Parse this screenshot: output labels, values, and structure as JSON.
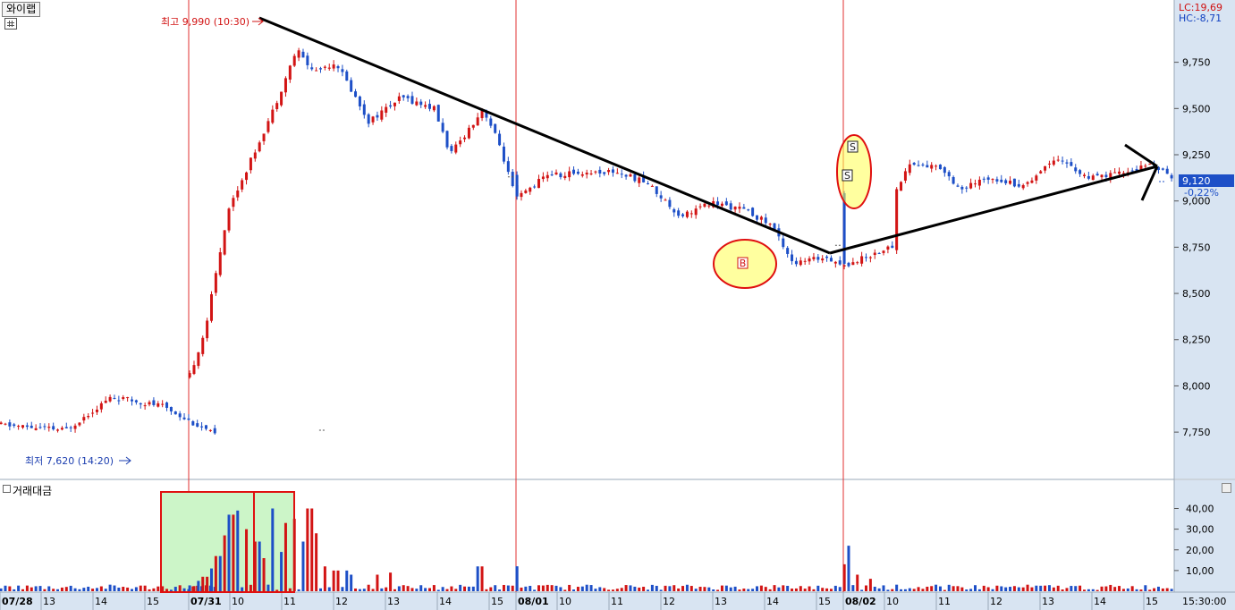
{
  "window": {
    "title": "와이랩"
  },
  "header": {
    "lc": "LC:19,69",
    "hc": "HC:-8,71"
  },
  "price": {
    "current_label": "9,120",
    "change_label": "-0,22%",
    "colors": {
      "up": "#d21414",
      "down": "#1d4fc7",
      "panel_bg": "#d8e4f2",
      "price_badge": "#1d4fc7"
    }
  },
  "annotations": {
    "high_label": "최고 9,990 (10:30)",
    "low_label": "최저 7,620 (14:20)",
    "buy_marker": "B",
    "sell_marker": "S"
  },
  "volume_panel": {
    "title": "거래대금"
  },
  "time_axis": {
    "labels": [
      "07/28",
      "13",
      "14",
      "15",
      "07/31",
      "10",
      "11",
      "12",
      "13",
      "14",
      "15",
      "08/01",
      "10",
      "11",
      "12",
      "13",
      "14",
      "15",
      "08/02",
      "10",
      "11",
      "12",
      "13",
      "14",
      "15"
    ],
    "last_label": "15:30:00"
  },
  "chart_data": [
    {
      "type": "candlestick",
      "title": "와이랩",
      "y_ticks": [
        "9,750",
        "9,500",
        "9,250",
        "9,000",
        "8,750",
        "8,500",
        "8,250",
        "8,000",
        "7,750"
      ],
      "ylim": [
        7520,
        10050
      ],
      "high": {
        "value": 9990,
        "time": "10:30"
      },
      "low": {
        "value": 7620,
        "time": "14:20"
      },
      "last_close": 9120,
      "day_separators": [
        "07/31",
        "08/01",
        "08/02"
      ],
      "keypoints": [
        {
          "t": 0.0,
          "p": 7790
        },
        {
          "t": 0.2,
          "p": 7760
        },
        {
          "t": 0.34,
          "p": 7940
        },
        {
          "t": 0.5,
          "p": 7890
        },
        {
          "t": 0.67,
          "p": 7720
        },
        {
          "t": 0.8,
          "p": 7630
        },
        {
          "t": 0.92,
          "p": 7720
        },
        {
          "t": 1.0,
          "p": 7760
        },
        {
          "t": 1.0,
          "p": 8040
        },
        {
          "t": 1.05,
          "p": 8300
        },
        {
          "t": 1.12,
          "p": 8950
        },
        {
          "t": 1.2,
          "p": 9260
        },
        {
          "t": 1.26,
          "p": 9500
        },
        {
          "t": 1.33,
          "p": 9820
        },
        {
          "t": 1.38,
          "p": 9700
        },
        {
          "t": 1.45,
          "p": 9750
        },
        {
          "t": 1.55,
          "p": 9430
        },
        {
          "t": 1.65,
          "p": 9560
        },
        {
          "t": 1.75,
          "p": 9500
        },
        {
          "t": 1.8,
          "p": 9250
        },
        {
          "t": 1.9,
          "p": 9500
        },
        {
          "t": 1.95,
          "p": 9300
        },
        {
          "t": 2.0,
          "p": 9010
        },
        {
          "t": 2.1,
          "p": 9150
        },
        {
          "t": 2.16,
          "p": 9130
        },
        {
          "t": 2.16,
          "p": 9150
        },
        {
          "t": 2.3,
          "p": 9160
        },
        {
          "t": 2.4,
          "p": 9100
        },
        {
          "t": 2.5,
          "p": 8920
        },
        {
          "t": 2.6,
          "p": 8990
        },
        {
          "t": 2.7,
          "p": 8950
        },
        {
          "t": 2.78,
          "p": 8870
        },
        {
          "t": 2.85,
          "p": 8660
        },
        {
          "t": 2.95,
          "p": 8700
        },
        {
          "t": 3.0,
          "p": 8650
        },
        {
          "t": 3.1,
          "p": 8720
        },
        {
          "t": 3.16,
          "p": 8760
        },
        {
          "t": 3.16,
          "p": 9050
        },
        {
          "t": 3.2,
          "p": 9200
        },
        {
          "t": 3.3,
          "p": 9180
        },
        {
          "t": 3.36,
          "p": 9060
        },
        {
          "t": 3.45,
          "p": 9130
        },
        {
          "t": 3.55,
          "p": 9080
        },
        {
          "t": 3.65,
          "p": 9240
        },
        {
          "t": 3.75,
          "p": 9120
        },
        {
          "t": 3.85,
          "p": 9150
        },
        {
          "t": 3.95,
          "p": 9200
        },
        {
          "t": 4.0,
          "p": 9120
        }
      ]
    },
    {
      "type": "bar",
      "title": "거래대금",
      "y_ticks": [
        "40,00",
        "30,00",
        "20,00",
        "10,00"
      ],
      "ylim": [
        0,
        48
      ],
      "spikes": [
        {
          "t": 1.03,
          "v": 5
        },
        {
          "t": 1.05,
          "v": 7
        },
        {
          "t": 1.07,
          "v": 11
        },
        {
          "t": 1.09,
          "v": 17
        },
        {
          "t": 1.11,
          "v": 27
        },
        {
          "t": 1.13,
          "v": 37
        },
        {
          "t": 1.15,
          "v": 39
        },
        {
          "t": 1.18,
          "v": 30
        },
        {
          "t": 1.21,
          "v": 24
        },
        {
          "t": 1.23,
          "v": 16
        },
        {
          "t": 1.26,
          "v": 40
        },
        {
          "t": 1.28,
          "v": 19
        },
        {
          "t": 1.3,
          "v": 33
        },
        {
          "t": 1.32,
          "v": 35
        },
        {
          "t": 1.35,
          "v": 24
        },
        {
          "t": 1.37,
          "v": 40
        },
        {
          "t": 1.39,
          "v": 28
        },
        {
          "t": 1.42,
          "v": 12
        },
        {
          "t": 1.45,
          "v": 10
        },
        {
          "t": 1.48,
          "v": 10
        },
        {
          "t": 1.5,
          "v": 8
        },
        {
          "t": 1.58,
          "v": 8
        },
        {
          "t": 1.62,
          "v": 9
        },
        {
          "t": 1.89,
          "v": 12
        },
        {
          "t": 2.0,
          "v": 12
        },
        {
          "t": 3.0,
          "v": 13
        },
        {
          "t": 3.02,
          "v": 22
        },
        {
          "t": 3.04,
          "v": 8
        },
        {
          "t": 3.08,
          "v": 6
        }
      ]
    }
  ]
}
